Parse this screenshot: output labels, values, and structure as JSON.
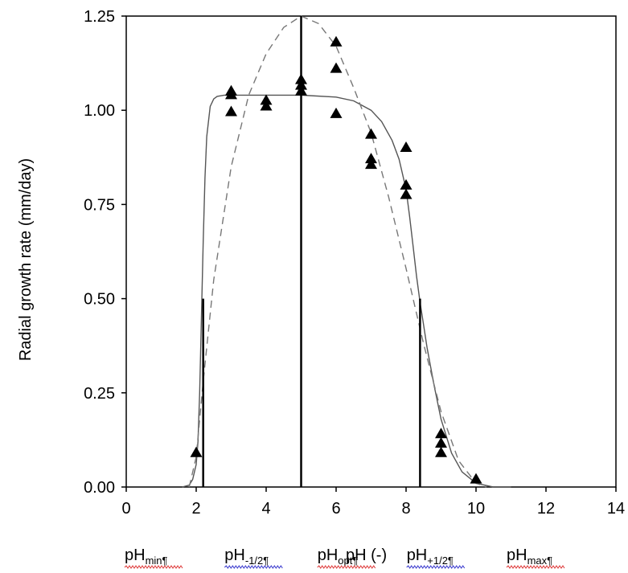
{
  "chart_data": {
    "type": "scatter",
    "title": "",
    "ylabel": "Radial growth rate  (mm/day)",
    "xlabel": "pH (-)",
    "xlim": [
      0,
      14
    ],
    "ylim": [
      0,
      1.25
    ],
    "x_ticks": [
      0,
      2,
      4,
      6,
      8,
      10,
      12,
      14
    ],
    "x_tick_labels": [
      "0",
      "2",
      "4",
      "6",
      "8",
      "10",
      "12",
      "14"
    ],
    "y_ticks": [
      0,
      0.25,
      0.5,
      0.75,
      1.0,
      1.25
    ],
    "y_tick_labels": [
      "0.00",
      "0.25",
      "0.50",
      "0.75",
      "1.00",
      "1.25"
    ],
    "grid": false,
    "points": [
      {
        "x": 2.0,
        "y": 0.09
      },
      {
        "x": 3.0,
        "y": 1.05
      },
      {
        "x": 3.0,
        "y": 1.04
      },
      {
        "x": 3.0,
        "y": 0.995
      },
      {
        "x": 4.0,
        "y": 1.025
      },
      {
        "x": 4.0,
        "y": 1.01
      },
      {
        "x": 5.0,
        "y": 1.08
      },
      {
        "x": 5.0,
        "y": 1.065
      },
      {
        "x": 5.0,
        "y": 1.05
      },
      {
        "x": 6.0,
        "y": 1.18
      },
      {
        "x": 6.0,
        "y": 1.11
      },
      {
        "x": 6.0,
        "y": 0.99
      },
      {
        "x": 7.0,
        "y": 0.935
      },
      {
        "x": 7.0,
        "y": 0.87
      },
      {
        "x": 7.0,
        "y": 0.855
      },
      {
        "x": 8.0,
        "y": 0.9
      },
      {
        "x": 8.0,
        "y": 0.8
      },
      {
        "x": 8.0,
        "y": 0.775
      },
      {
        "x": 9.0,
        "y": 0.14
      },
      {
        "x": 9.0,
        "y": 0.115
      },
      {
        "x": 9.0,
        "y": 0.09
      },
      {
        "x": 10.0,
        "y": 0.02
      }
    ],
    "series": [
      {
        "style": "solid",
        "color": "#555555",
        "x": [
          1.6,
          1.8,
          1.9,
          2.0,
          2.05,
          2.1,
          2.15,
          2.2,
          2.25,
          2.3,
          2.4,
          2.5,
          2.6,
          2.8,
          3.0,
          4.0,
          5.0,
          6.0,
          6.5,
          7.0,
          7.3,
          7.6,
          7.8,
          8.0,
          8.1,
          8.2,
          8.3,
          8.4,
          8.5,
          8.6,
          8.8,
          9.0,
          9.3,
          9.6,
          10.0,
          10.5,
          11.0
        ],
        "y": [
          0.0,
          0.005,
          0.02,
          0.06,
          0.12,
          0.25,
          0.45,
          0.65,
          0.82,
          0.93,
          1.01,
          1.03,
          1.037,
          1.04,
          1.04,
          1.04,
          1.04,
          1.035,
          1.025,
          1.0,
          0.97,
          0.92,
          0.87,
          0.79,
          0.72,
          0.64,
          0.56,
          0.49,
          0.43,
          0.37,
          0.27,
          0.18,
          0.09,
          0.04,
          0.01,
          0.0,
          0.0
        ]
      },
      {
        "style": "dashed",
        "color": "#777777",
        "x": [
          1.8,
          2.0,
          2.2,
          2.5,
          3.0,
          3.5,
          4.0,
          4.5,
          5.0,
          5.5,
          6.0,
          6.5,
          7.0,
          7.5,
          8.0,
          8.5,
          9.0,
          9.5,
          10.0,
          10.3
        ],
        "y": [
          0.0,
          0.08,
          0.28,
          0.55,
          0.85,
          1.04,
          1.15,
          1.22,
          1.25,
          1.23,
          1.17,
          1.06,
          0.94,
          0.77,
          0.58,
          0.38,
          0.2,
          0.07,
          0.01,
          0.0
        ]
      }
    ],
    "vertical_markers": [
      {
        "x": 2.2,
        "y_top": 0.5
      },
      {
        "x": 5.0,
        "y_top": 1.25
      },
      {
        "x": 8.4,
        "y_top": 0.5
      }
    ],
    "below_axis_labels": [
      {
        "base": "pH",
        "sub": "min¶",
        "x": 1.6,
        "underline": "red"
      },
      {
        "base": "pH",
        "sub": "-1/2¶",
        "x": 4.4,
        "underline": "blue"
      },
      {
        "base": "pH",
        "sub": "opt¶",
        "x": 7.0,
        "underline": "red"
      },
      {
        "base": "pH",
        "sub": "+1/2¶",
        "x": 9.5,
        "underline": "blue"
      },
      {
        "base": "pH",
        "sub": "max¶",
        "x": 12.3,
        "underline": "red"
      }
    ]
  }
}
